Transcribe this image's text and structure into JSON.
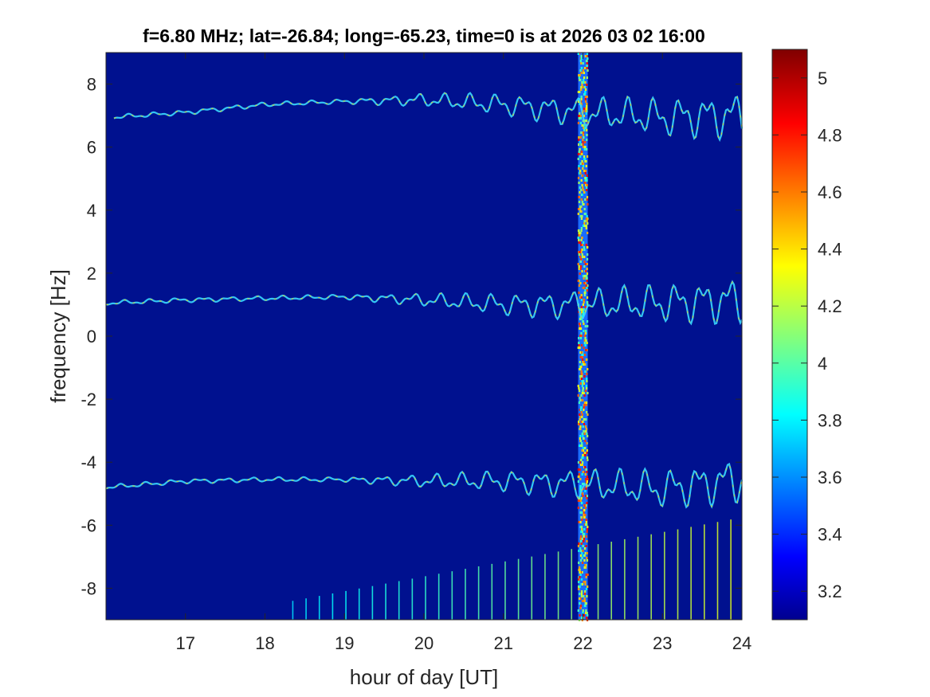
{
  "chart_data": {
    "type": "heatmap",
    "title": "f=6.80 MHz;  lat=-26.84; long=-65.23, time=0 is at 2026 03 02 16:00",
    "xlabel": "hour of day [UT]",
    "ylabel": "frequency [Hz]",
    "xlim": [
      16,
      24
    ],
    "ylim": [
      -9,
      9
    ],
    "xticks": [
      17,
      18,
      19,
      20,
      21,
      22,
      23,
      24
    ],
    "yticks": [
      -8,
      -6,
      -4,
      -2,
      0,
      2,
      4,
      6,
      8
    ],
    "colorbar": {
      "range": [
        3.1,
        5.1
      ],
      "ticks": [
        3.2,
        3.4,
        3.6,
        3.8,
        4,
        4.2,
        4.4,
        4.6,
        4.8,
        5
      ],
      "colormap": "jet"
    },
    "background_level": 3.12,
    "traces": [
      {
        "start_hour": 16.1,
        "points": [
          [
            16.1,
            6.95
          ],
          [
            17,
            7.1
          ],
          [
            18,
            7.35
          ],
          [
            19,
            7.45
          ],
          [
            20,
            7.5
          ],
          [
            21,
            7.35
          ],
          [
            22,
            7.1
          ],
          [
            23,
            6.95
          ],
          [
            24,
            7.0
          ]
        ]
      },
      {
        "start_hour": 16.0,
        "points": [
          [
            16.0,
            1.05
          ],
          [
            17,
            1.15
          ],
          [
            18,
            1.2
          ],
          [
            19,
            1.25
          ],
          [
            20,
            1.15
          ],
          [
            21,
            1.0
          ],
          [
            22,
            1.0
          ],
          [
            23,
            1.05
          ],
          [
            24,
            1.15
          ]
        ]
      },
      {
        "start_hour": 16.0,
        "points": [
          [
            16.0,
            -4.8
          ],
          [
            17,
            -4.6
          ],
          [
            18,
            -4.55
          ],
          [
            19,
            -4.55
          ],
          [
            20,
            -4.6
          ],
          [
            21,
            -4.6
          ],
          [
            22,
            -4.7
          ],
          [
            23,
            -4.85
          ],
          [
            24,
            -4.55
          ]
        ]
      }
    ],
    "broadband_band": {
      "hour": 22.0,
      "width_hours": 0.12
    },
    "vertical_streaks": {
      "start_hour": 18.35,
      "spacing_hours": 0.167,
      "end_hour": 23.9,
      "top_frequency_start": -8.4,
      "top_frequency_end": -5.8
    }
  }
}
